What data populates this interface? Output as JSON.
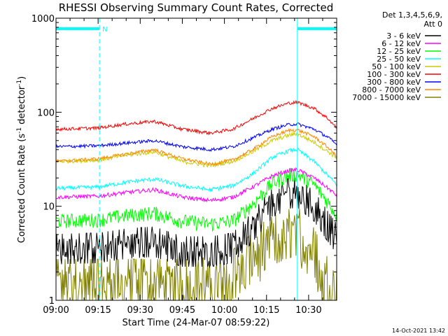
{
  "chart_data": {
    "type": "line",
    "title": "RHESSI Observing Summary Count Rates, Corrected",
    "xlabel": "Start Time (24-Mar-07 08:59:22)",
    "ylabel": "Corrected Count Rate (s",
    "ylabel_sup1": "-1",
    "ylabel_mid": " detector",
    "ylabel_sup2": "-1",
    "ylabel_end": ")",
    "footer": "14-Oct-2021 13:42",
    "x_axis": {
      "range_min": [
        0,
        100
      ],
      "ticks_min": [
        0,
        15,
        30,
        45,
        60,
        75,
        90
      ],
      "tick_labels": [
        "09:00",
        "09:15",
        "09:30",
        "09:45",
        "10:00",
        "10:15",
        "10:30"
      ]
    },
    "y_axis": {
      "scale": "log",
      "range": [
        1,
        1000
      ],
      "ticks": [
        1,
        10,
        100,
        1000
      ],
      "tick_labels": [
        "1",
        "10",
        "100",
        "1000"
      ]
    },
    "legend": {
      "placement": "outside-right",
      "header_lines": [
        "Det 1,3,4,5,6,9,",
        "Att 0"
      ],
      "entries": [
        {
          "label": "3 - 6 keV",
          "color": "#000000"
        },
        {
          "label": "6 - 12 keV",
          "color": "#ff00ff"
        },
        {
          "label": "12 - 25 keV",
          "color": "#00ff00"
        },
        {
          "label": "25 - 50 keV",
          "color": "#00ffff"
        },
        {
          "label": "50 - 100 keV",
          "color": "#cccc00"
        },
        {
          "label": "100 - 300 keV",
          "color": "#ff0000"
        },
        {
          "label": "300 - 800 keV",
          "color": "#0000ff"
        },
        {
          "label": "800 - 7000 keV",
          "color": "#ff8800"
        },
        {
          "label": "7000 - 15000 keV",
          "color": "#808000"
        }
      ]
    },
    "annotations": {
      "night_label": "N",
      "night_intervals_min": [
        [
          0,
          15.5
        ],
        [
          86,
          100
        ]
      ],
      "saa_dashed_lines_min": [
        15.5,
        100
      ],
      "solid_lines_min": [
        0,
        86
      ]
    },
    "series": [
      {
        "name": "7000 - 15000 keV",
        "color": "#808000",
        "noise": 0.55,
        "keys": [
          [
            0,
            1.5
          ],
          [
            20,
            1.5
          ],
          [
            45,
            1.5
          ],
          [
            60,
            1.6
          ],
          [
            68,
            2.5
          ],
          [
            75,
            4.0
          ],
          [
            82,
            5.0
          ],
          [
            86,
            5.5
          ],
          [
            92,
            3.2
          ],
          [
            97,
            1.5
          ],
          [
            100,
            1.5
          ]
        ]
      },
      {
        "name": "3 - 6 keV",
        "color": "#000000",
        "noise": 0.3,
        "keys": [
          [
            0,
            3.5
          ],
          [
            15,
            3.6
          ],
          [
            25,
            4.0
          ],
          [
            35,
            4.2
          ],
          [
            45,
            3.3
          ],
          [
            55,
            3.3
          ],
          [
            63,
            3.6
          ],
          [
            70,
            6.0
          ],
          [
            76,
            10.0
          ],
          [
            82,
            13.5
          ],
          [
            86,
            14.0
          ],
          [
            92,
            10.0
          ],
          [
            97,
            6.0
          ],
          [
            100,
            4.5
          ]
        ]
      },
      {
        "name": "12 - 25 keV",
        "color": "#00ff00",
        "noise": 0.18,
        "keys": [
          [
            0,
            7.0
          ],
          [
            15,
            7.2
          ],
          [
            25,
            8.0
          ],
          [
            35,
            8.5
          ],
          [
            45,
            7.0
          ],
          [
            55,
            6.5
          ],
          [
            63,
            7.0
          ],
          [
            70,
            10.5
          ],
          [
            77,
            17.5
          ],
          [
            83,
            21.5
          ],
          [
            86,
            22.0
          ],
          [
            92,
            17.0
          ],
          [
            97,
            11.0
          ],
          [
            100,
            8.0
          ]
        ]
      },
      {
        "name": "6 - 12 keV",
        "color": "#ff00ff",
        "noise": 0.05,
        "keys": [
          [
            0,
            12.5
          ],
          [
            15,
            12.8
          ],
          [
            25,
            14.0
          ],
          [
            35,
            15.0
          ],
          [
            45,
            12.5
          ],
          [
            55,
            11.5
          ],
          [
            63,
            12.5
          ],
          [
            70,
            16.0
          ],
          [
            77,
            21.0
          ],
          [
            83,
            24.0
          ],
          [
            86,
            24.5
          ],
          [
            92,
            20.0
          ],
          [
            97,
            15.5
          ],
          [
            100,
            13.0
          ]
        ]
      },
      {
        "name": "25 - 50 keV",
        "color": "#00ffff",
        "noise": 0.05,
        "keys": [
          [
            0,
            15.5
          ],
          [
            15,
            16.0
          ],
          [
            25,
            18.0
          ],
          [
            35,
            19.5
          ],
          [
            45,
            16.5
          ],
          [
            55,
            15.0
          ],
          [
            63,
            16.5
          ],
          [
            70,
            22.0
          ],
          [
            77,
            33.0
          ],
          [
            83,
            39.0
          ],
          [
            86,
            40.0
          ],
          [
            92,
            30.0
          ],
          [
            97,
            21.0
          ],
          [
            100,
            17.0
          ]
        ]
      },
      {
        "name": "50 - 100 keV",
        "color": "#cccc00",
        "noise": 0.05,
        "keys": [
          [
            0,
            30.0
          ],
          [
            15,
            31.0
          ],
          [
            25,
            35.0
          ],
          [
            35,
            38.0
          ],
          [
            45,
            30.0
          ],
          [
            55,
            27.0
          ],
          [
            63,
            30.0
          ],
          [
            70,
            38.0
          ],
          [
            77,
            50.0
          ],
          [
            83,
            57.0
          ],
          [
            86,
            59.0
          ],
          [
            92,
            48.0
          ],
          [
            97,
            38.0
          ],
          [
            100,
            33.0
          ]
        ]
      },
      {
        "name": "800 - 7000 keV",
        "color": "#ff8800",
        "noise": 0.04,
        "keys": [
          [
            0,
            30.0
          ],
          [
            15,
            32.0
          ],
          [
            25,
            36.0
          ],
          [
            35,
            40.0
          ],
          [
            45,
            32.0
          ],
          [
            55,
            28.0
          ],
          [
            63,
            31.0
          ],
          [
            70,
            40.0
          ],
          [
            77,
            55.0
          ],
          [
            83,
            64.0
          ],
          [
            86,
            65.0
          ],
          [
            92,
            55.0
          ],
          [
            97,
            42.0
          ],
          [
            100,
            34.0
          ]
        ]
      },
      {
        "name": "300 - 800 keV",
        "color": "#0000ff",
        "noise": 0.04,
        "keys": [
          [
            0,
            43.0
          ],
          [
            15,
            44.0
          ],
          [
            25,
            47.0
          ],
          [
            35,
            50.0
          ],
          [
            45,
            43.0
          ],
          [
            55,
            40.0
          ],
          [
            63,
            43.0
          ],
          [
            70,
            53.0
          ],
          [
            77,
            66.0
          ],
          [
            83,
            74.0
          ],
          [
            86,
            75.0
          ],
          [
            92,
            66.0
          ],
          [
            97,
            54.0
          ],
          [
            100,
            45.0
          ]
        ]
      },
      {
        "name": "100 - 300 keV",
        "color": "#ff0000",
        "noise": 0.04,
        "keys": [
          [
            0,
            66.0
          ],
          [
            15,
            68.0
          ],
          [
            25,
            75.0
          ],
          [
            35,
            80.0
          ],
          [
            45,
            66.0
          ],
          [
            55,
            60.0
          ],
          [
            63,
            66.0
          ],
          [
            70,
            85.0
          ],
          [
            77,
            110.0
          ],
          [
            83,
            125.0
          ],
          [
            86,
            128.0
          ],
          [
            92,
            110.0
          ],
          [
            97,
            85.0
          ],
          [
            100,
            68.0
          ]
        ]
      }
    ]
  }
}
